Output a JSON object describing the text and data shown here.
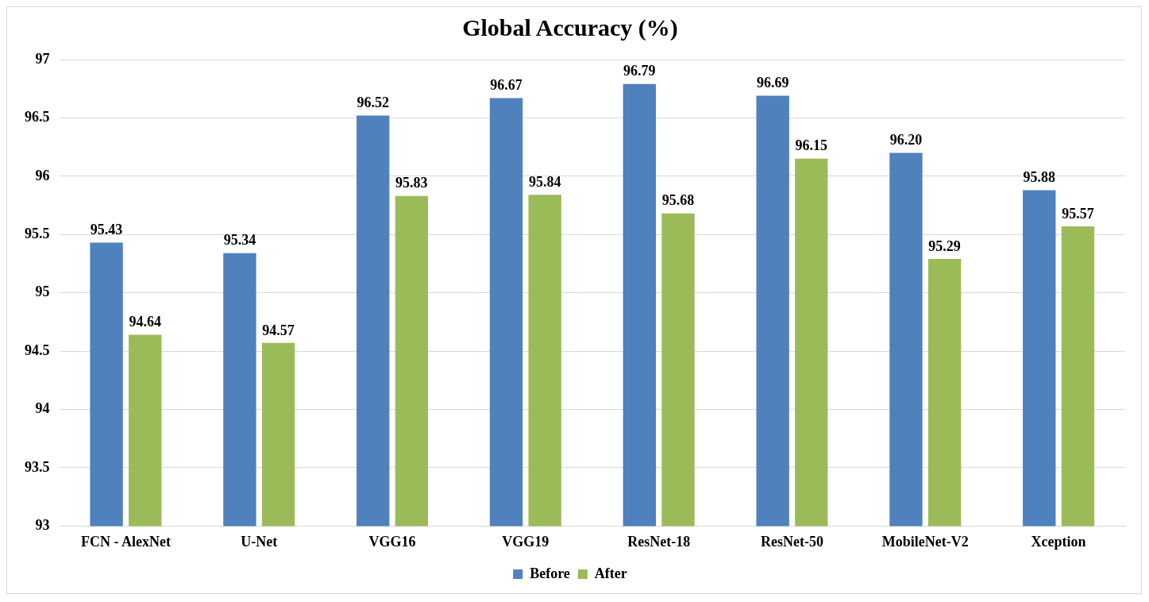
{
  "chart_data": {
    "type": "bar",
    "title": "Global Accuracy (%)",
    "categories": [
      "FCN - AlexNet",
      "U-Net",
      "VGG16",
      "VGG19",
      "ResNet-18",
      "ResNet-50",
      "MobileNet-V2",
      "Xception"
    ],
    "series": [
      {
        "name": "Before",
        "color": "#4f81bd",
        "values": [
          95.43,
          95.34,
          96.52,
          96.67,
          96.79,
          96.69,
          96.2,
          95.88
        ],
        "value_labels": [
          "95.43",
          "95.34",
          "96.52",
          "96.67",
          "96.79",
          "96.69",
          "96.20",
          "95.88"
        ]
      },
      {
        "name": "After",
        "color": "#9bbb59",
        "values": [
          94.64,
          94.57,
          95.83,
          95.84,
          95.68,
          96.15,
          95.29,
          95.57
        ],
        "value_labels": [
          "94.64",
          "94.57",
          "95.83",
          "95.84",
          "95.68",
          "96.15",
          "95.29",
          "95.57"
        ]
      }
    ],
    "ylim": [
      93,
      97
    ],
    "yticks": [
      93,
      93.5,
      94,
      94.5,
      95,
      95.5,
      96,
      96.5,
      97
    ],
    "grid": "y",
    "legend": "bottom"
  }
}
